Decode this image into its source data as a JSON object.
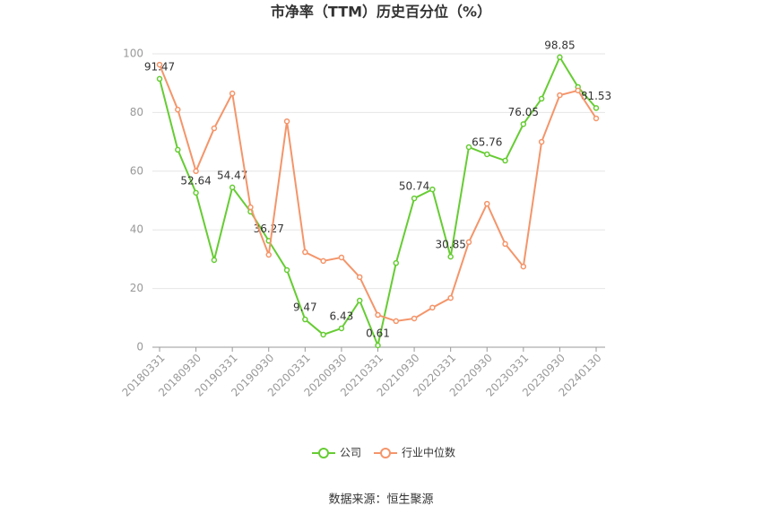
{
  "chart_data": {
    "type": "line",
    "title": "市净率（TTM）历史百分位（%）",
    "source": "数据来源：恒生聚源",
    "categories": [
      "20180331",
      null,
      "20180930",
      null,
      "20190331",
      null,
      "20190930",
      null,
      "20200331",
      null,
      "20200930",
      null,
      "20210331",
      null,
      "20210930",
      null,
      "20220331",
      null,
      "20220930",
      null,
      "20230331",
      null,
      "20230930",
      null,
      "20240130"
    ],
    "series": [
      {
        "name": "公司",
        "color": "#66cc33",
        "values": [
          91.47,
          67.3,
          52.64,
          29.7,
          54.47,
          46.2,
          36.27,
          26.3,
          9.47,
          4.3,
          6.43,
          15.9,
          0.61,
          28.7,
          50.74,
          53.8,
          30.85,
          68.2,
          65.76,
          63.6,
          76.05,
          84.7,
          98.85,
          88.7,
          81.53
        ],
        "value_labels": [
          "91.47",
          null,
          "52.64",
          null,
          "54.47",
          null,
          "36.27",
          null,
          "9.47",
          null,
          "6.43",
          null,
          "0.61",
          null,
          "50.74",
          null,
          "30.85",
          null,
          "65.76",
          null,
          "76.05",
          null,
          "98.85",
          null,
          "81.53"
        ]
      },
      {
        "name": "行业中位数",
        "color": "#f4956a",
        "values": [
          96.3,
          81,
          60,
          74.6,
          86.5,
          47.7,
          31.5,
          77,
          32.4,
          29.4,
          30.6,
          23.9,
          11,
          8.9,
          9.8,
          13.5,
          16.8,
          35.8,
          48.9,
          35.2,
          27.5,
          70,
          85.9,
          87.5,
          78
        ]
      }
    ],
    "ylim": [
      0,
      100
    ],
    "yticks": [
      0,
      20,
      40,
      60,
      80,
      100
    ],
    "grid": true,
    "legend": "bottom"
  }
}
